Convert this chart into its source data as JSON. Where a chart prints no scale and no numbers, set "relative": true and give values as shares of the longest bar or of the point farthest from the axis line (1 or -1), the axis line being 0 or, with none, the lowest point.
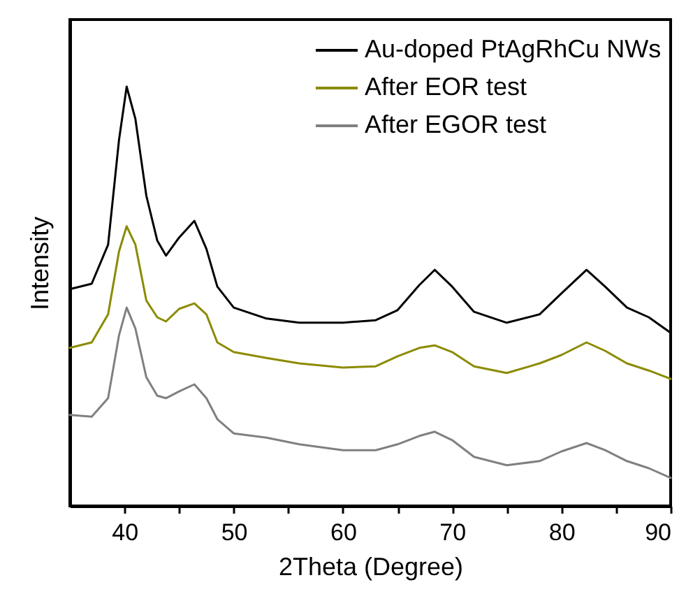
{
  "chart_data": {
    "type": "line",
    "xlabel": "2Theta (Degree)",
    "ylabel": "Intensity",
    "relative": true,
    "xlim": [
      35,
      90
    ],
    "xticks": [
      40,
      {
        "value": 45,
        "label": null
      },
      50,
      {
        "value": 55,
        "label": null
      },
      60,
      {
        "value": 65,
        "label": null
      },
      70,
      {
        "value": 75,
        "label": null
      },
      80,
      {
        "value": 85,
        "label": null
      },
      90
    ],
    "x": [
      35,
      37,
      38.5,
      39.5,
      40.2,
      41,
      42,
      43,
      43.8,
      45,
      46.4,
      47.5,
      48.5,
      50,
      53,
      56,
      60,
      63,
      65,
      67,
      68.4,
      70,
      72,
      75,
      78,
      80,
      82.3,
      84,
      86,
      88,
      90
    ],
    "series": [
      {
        "name": "Au-doped PtAgRhCu NWs",
        "color": "#000000",
        "values": [
          0.517,
          0.53,
          0.623,
          0.873,
          1.0,
          0.923,
          0.74,
          0.633,
          0.597,
          0.64,
          0.68,
          0.613,
          0.523,
          0.473,
          0.447,
          0.437,
          0.437,
          0.443,
          0.467,
          0.527,
          0.563,
          0.523,
          0.463,
          0.437,
          0.457,
          0.507,
          0.563,
          0.523,
          0.473,
          0.45,
          0.413
        ]
      },
      {
        "name": "After EOR test",
        "color": "#8b8b00",
        "values": [
          0.377,
          0.39,
          0.457,
          0.607,
          0.667,
          0.623,
          0.49,
          0.45,
          0.44,
          0.47,
          0.483,
          0.457,
          0.39,
          0.367,
          0.353,
          0.34,
          0.33,
          0.333,
          0.357,
          0.377,
          0.383,
          0.367,
          0.333,
          0.317,
          0.34,
          0.36,
          0.39,
          0.37,
          0.34,
          0.323,
          0.303
        ]
      },
      {
        "name": "After EGOR test",
        "color": "#808080",
        "values": [
          0.217,
          0.213,
          0.257,
          0.407,
          0.473,
          0.423,
          0.307,
          0.263,
          0.257,
          0.273,
          0.29,
          0.257,
          0.207,
          0.173,
          0.163,
          0.147,
          0.133,
          0.133,
          0.147,
          0.167,
          0.177,
          0.157,
          0.117,
          0.097,
          0.107,
          0.13,
          0.15,
          0.133,
          0.107,
          0.09,
          0.067
        ]
      }
    ],
    "legend": "top right",
    "marker": "none",
    "line_style": "solid"
  }
}
